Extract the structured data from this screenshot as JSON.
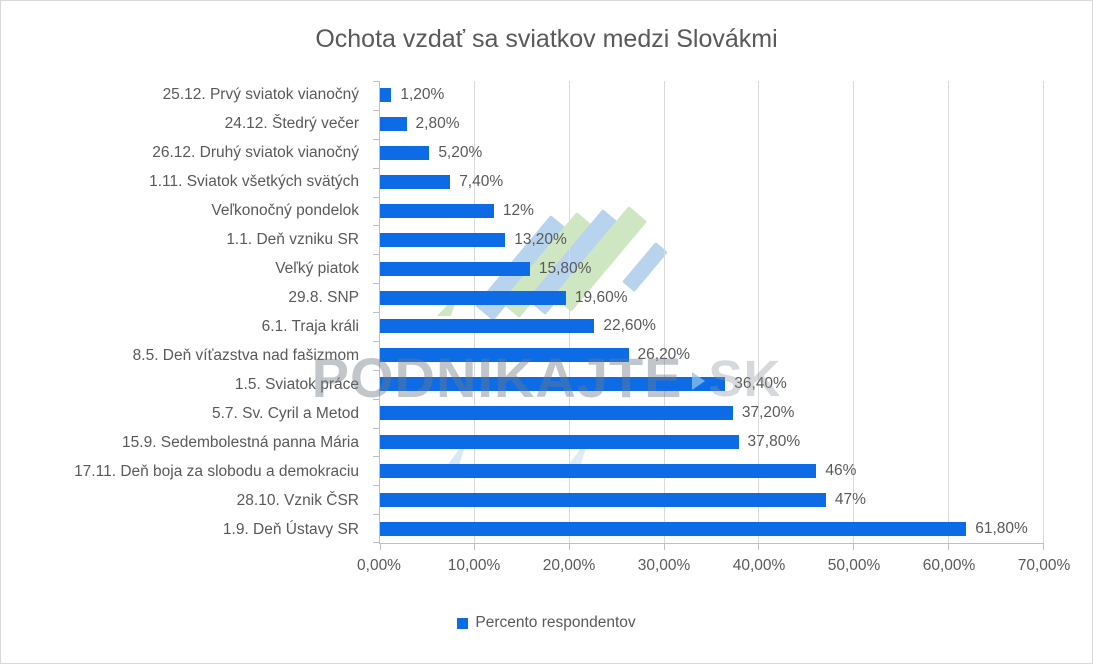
{
  "title": "Ochota vzdať sa sviatkov medzi Slovákmi",
  "legend": {
    "label": "Percento respondentov"
  },
  "watermark": {
    "text": "PODNIKAJTE",
    "suffix": "SK",
    "chevron": "play-chevron-icon"
  },
  "colors": {
    "bar": "#0d6ce5",
    "text": "#595959",
    "grid": "#d9d9d9",
    "axis": "#bfbfbf",
    "watermark_blue": "#b7d3ed",
    "watermark_green": "#cfe6c2"
  },
  "chart_data": {
    "type": "bar",
    "orientation": "horizontal",
    "title": "Ochota vzdať sa sviatkov medzi Slovákmi",
    "series_name": "Percento respondentov",
    "legend_position": "bottom",
    "grid": "vertical gridlines",
    "xlim": [
      0,
      70
    ],
    "x_ticks": [
      "0,00%",
      "10,00%",
      "20,00%",
      "30,00%",
      "40,00%",
      "50,00%",
      "60,00%",
      "70,00%"
    ],
    "categories": [
      "25.12. Prvý sviatok vianočný",
      "24.12. Štedrý večer",
      "26.12. Druhý sviatok vianočný",
      "1.11. Sviatok všetkých svätých",
      "Veľkonočný pondelok",
      "1.1. Deň vzniku SR",
      "Veľký piatok",
      "29.8. SNP",
      "6.1. Traja králi",
      "8.5. Deň víťazstva nad fašizmom",
      "1.5. Sviatok práce",
      "5.7. Sv. Cyril a Metod",
      "15.9. Sedembolestná panna Mária",
      "17.11. Deň boja za slobodu a demokraciu",
      "28.10. Vznik ČSR",
      "1.9. Deň Ústavy SR"
    ],
    "values": [
      1.2,
      2.8,
      5.2,
      7.4,
      12,
      13.2,
      15.8,
      19.6,
      22.6,
      26.2,
      36.4,
      37.2,
      37.8,
      46,
      47,
      61.8
    ],
    "value_labels": [
      "1,20%",
      "2,80%",
      "5,20%",
      "7,40%",
      "12%",
      "13,20%",
      "15,80%",
      "19,60%",
      "22,60%",
      "26,20%",
      "36,40%",
      "37,20%",
      "37,80%",
      "46%",
      "47%",
      "61,80%"
    ]
  }
}
